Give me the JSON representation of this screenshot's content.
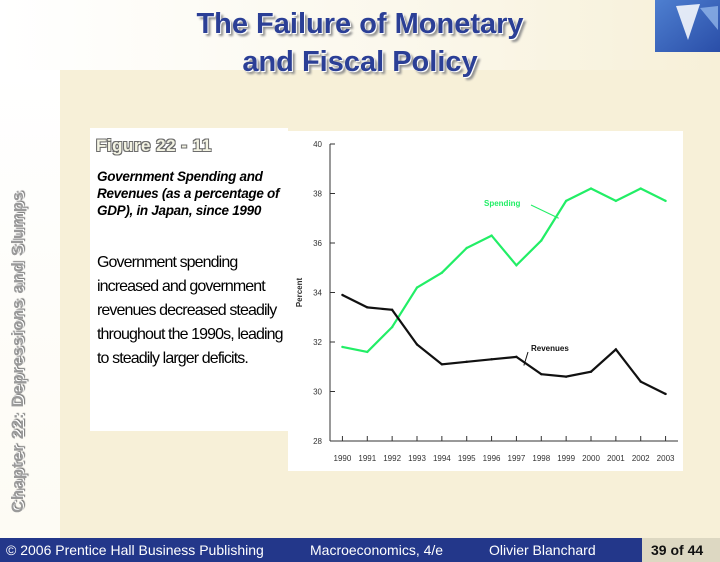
{
  "slide": {
    "title_line_1": "The Failure of Monetary",
    "title_line_2": "and Fiscal Policy",
    "side_label": "Chapter 22: Depressions and Slumps",
    "figure_label": "Figure 22 - 11",
    "figure_caption": "Government Spending and Revenues (as a percentage of GDP), in Japan, since 1990",
    "figure_text": "Government spending increased and government revenues decreased steadily throughout the 1990s, leading to steadily larger deficits."
  },
  "footer": {
    "copyright": "© 2006 Prentice Hall Business Publishing",
    "book": "Macroeconomics, 4/e",
    "author": "Olivier Blanchard",
    "page": "39 of 44"
  },
  "colors": {
    "title": "#2b3f96",
    "footer": "#23378a",
    "beige": "#f7f0d8",
    "spending": "#22ee66",
    "revenues": "#111111"
  },
  "chart_data": {
    "type": "line",
    "x": [
      1990,
      1991,
      1992,
      1993,
      1994,
      1995,
      1996,
      1997,
      1998,
      1999,
      2000,
      2001,
      2002,
      2003
    ],
    "series": [
      {
        "name": "Spending",
        "color": "#22ee66",
        "values": [
          31.8,
          31.6,
          32.6,
          34.2,
          34.8,
          35.8,
          36.3,
          35.1,
          36.1,
          37.7,
          38.2,
          37.7,
          38.2,
          37.7
        ]
      },
      {
        "name": "Revenues",
        "color": "#111111",
        "values": [
          33.9,
          33.4,
          33.3,
          31.9,
          31.1,
          31.2,
          31.3,
          31.4,
          30.7,
          30.6,
          30.8,
          31.7,
          30.4,
          29.9
        ]
      }
    ],
    "ylabel": "Percent",
    "xlabel": "",
    "title": "",
    "ylim": [
      28,
      40
    ],
    "yticks": [
      28,
      30,
      32,
      34,
      36,
      38,
      40
    ],
    "grid": false,
    "legend": "inline labels"
  }
}
